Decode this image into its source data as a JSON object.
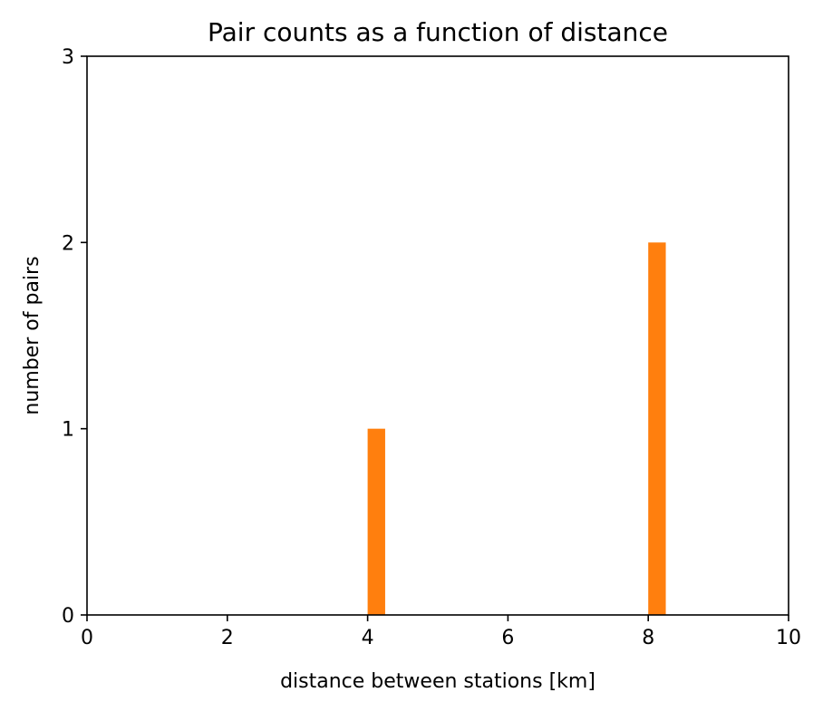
{
  "chart_data": {
    "type": "bar",
    "title": "Pair counts as a function of distance",
    "xlabel": "distance between stations [km]",
    "ylabel": "number of pairs",
    "xlim": [
      0,
      10
    ],
    "ylim": [
      0,
      3
    ],
    "xticks": [
      0,
      2,
      4,
      6,
      8,
      10
    ],
    "yticks": [
      0,
      1,
      2,
      3
    ],
    "bin_width": 0.25,
    "bars": [
      {
        "x": 4.0,
        "value": 1
      },
      {
        "x": 8.0,
        "value": 2
      }
    ],
    "grid": false,
    "bar_color": "#ff7f0e"
  }
}
